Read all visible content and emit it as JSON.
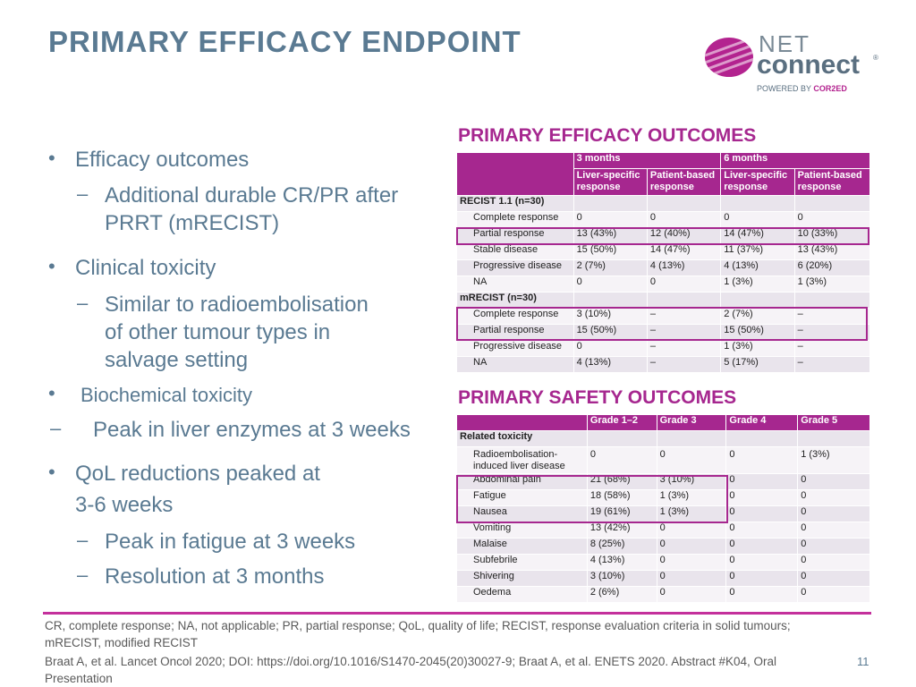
{
  "title": "PRIMARY EFFICACY ENDPOINT",
  "logo": {
    "net": "NET",
    "connect": "connect",
    "reg": "®",
    "powered_prefix": "POWERED BY ",
    "powered_brand": "COR2ED"
  },
  "bullets": [
    {
      "level": 1,
      "text": "Efficacy outcomes"
    },
    {
      "level": 2,
      "text": "Additional durable CR/PR after"
    },
    {
      "level": 2,
      "text": "PRRT (mRECIST)",
      "cont": true
    },
    {
      "level": 1,
      "text": "Clinical toxicity"
    },
    {
      "level": 2,
      "text": "Similar to radioembolisation"
    },
    {
      "level": 2,
      "text": "of other tumour types in",
      "cont": true
    },
    {
      "level": 2,
      "text": "salvage setting",
      "cont": true
    },
    {
      "level": 1,
      "text": "Biochemical toxicity"
    },
    {
      "level": 2,
      "text": "Peak in liver enzymes at 3 weeks"
    },
    {
      "level": 1,
      "text": "QoL reductions peaked at"
    },
    {
      "level": 1,
      "text": "3-6 weeks",
      "cont": true
    },
    {
      "level": 2,
      "text": "Peak in fatigue at 3 weeks"
    },
    {
      "level": 2,
      "text": "Resolution at 3 months"
    }
  ],
  "efficacy": {
    "title": "PRIMARY EFFICACY OUTCOMES",
    "header_top": [
      "",
      "3 months",
      "6 months"
    ],
    "header_sub": [
      "Liver-specific response",
      "Patient-based response",
      "Liver-specific response",
      "Patient-based response"
    ],
    "rows": [
      {
        "section": "RECIST 1.1 (n=30)"
      },
      {
        "label": "Complete response",
        "cells": [
          "0",
          "0",
          "0",
          "0"
        ]
      },
      {
        "label": "Partial response",
        "cells": [
          "13 (43%)",
          "12 (40%)",
          "14 (47%)",
          "10 (33%)"
        ]
      },
      {
        "label": "Stable disease",
        "cells": [
          "15 (50%)",
          "14 (47%)",
          "11 (37%)",
          "13 (43%)"
        ]
      },
      {
        "label": "Progressive disease",
        "cells": [
          "2 (7%)",
          "4 (13%)",
          "4 (13%)",
          "6 (20%)"
        ]
      },
      {
        "label": "NA",
        "cells": [
          "0",
          "0",
          "1 (3%)",
          "1 (3%)"
        ]
      },
      {
        "section": "mRECIST (n=30)"
      },
      {
        "label": "Complete response",
        "cells": [
          "3 (10%)",
          "–",
          "2 (7%)",
          "–"
        ]
      },
      {
        "label": "Partial response",
        "cells": [
          "15 (50%)",
          "–",
          "15 (50%)",
          "–"
        ]
      },
      {
        "label": "Progressive disease",
        "cells": [
          "0",
          "–",
          "1 (3%)",
          "–"
        ]
      },
      {
        "label": "NA",
        "cells": [
          "4 (13%)",
          "–",
          "5 (17%)",
          "–"
        ]
      }
    ]
  },
  "safety": {
    "title": "PRIMARY SAFETY OUTCOMES",
    "header": [
      "",
      "Grade 1–2",
      "Grade 3",
      "Grade 4",
      "Grade 5"
    ],
    "rows": [
      {
        "section": "Related toxicity"
      },
      {
        "label": "Radioembolisation-induced liver disease",
        "cells": [
          "0",
          "0",
          "0",
          "1 (3%)"
        ]
      },
      {
        "label": "Abdominal pain",
        "cells": [
          "21 (68%)",
          "3 (10%)",
          "0",
          "0"
        ]
      },
      {
        "label": "Fatigue",
        "cells": [
          "18 (58%)",
          "1 (3%)",
          "0",
          "0"
        ]
      },
      {
        "label": "Nausea",
        "cells": [
          "19 (61%)",
          "1 (3%)",
          "0",
          "0"
        ]
      },
      {
        "label": "Vomiting",
        "cells": [
          "13 (42%)",
          "0",
          "0",
          "0"
        ]
      },
      {
        "label": "Malaise",
        "cells": [
          "8 (25%)",
          "0",
          "0",
          "0"
        ]
      },
      {
        "label": "Subfebrile",
        "cells": [
          "4 (13%)",
          "0",
          "0",
          "0"
        ]
      },
      {
        "label": "Shivering",
        "cells": [
          "3 (10%)",
          "0",
          "0",
          "0"
        ]
      },
      {
        "label": "Oedema",
        "cells": [
          "2 (6%)",
          "0",
          "0",
          "0"
        ]
      }
    ]
  },
  "footnote_1": "CR, complete response; NA, not applicable; PR, partial response; QoL, quality of life; RECIST, response evaluation criteria in solid tumours; mRECIST, modified RECIST",
  "footnote_2": "Braat A, et al. Lancet Oncol 2020; DOI: https://doi.org/10.1016/S1470-2045(20)30027-9; Braat A, et al. ENETS 2020. Abstract #K04, Oral Presentation",
  "page_number": "11"
}
